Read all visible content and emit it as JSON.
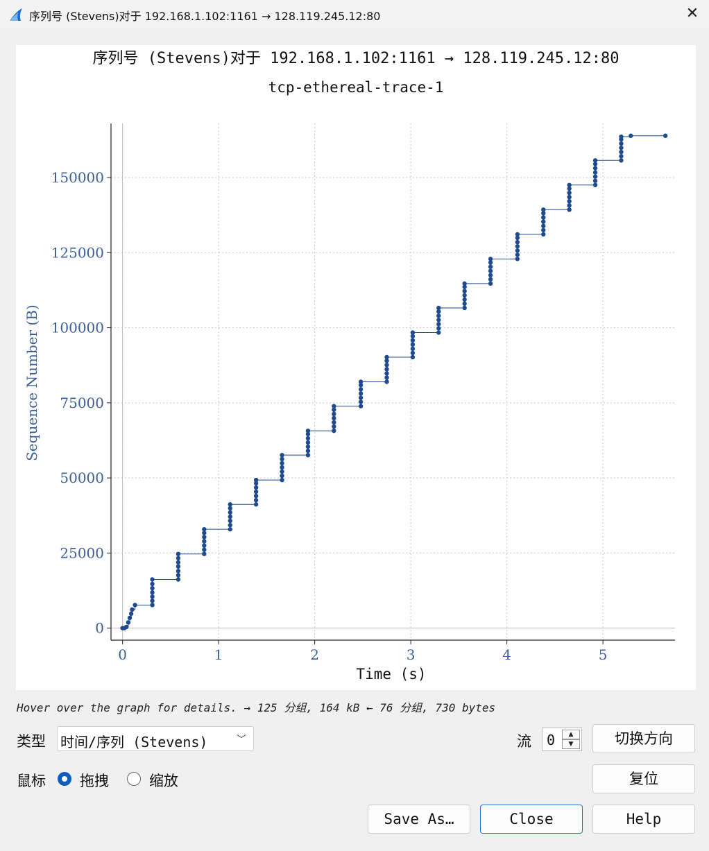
{
  "window": {
    "title": "序列号 (Stevens)对于 192.168.1.102:1161 → 128.119.245.12:80",
    "close_glyph": "✕"
  },
  "colors": {
    "series": "#1f4b8e",
    "axis_label": "#3a5f9a",
    "accent": "#0f5cc0"
  },
  "chart_data": {
    "type": "scatter",
    "style": "stevens-step",
    "title": "序列号 (Stevens)对于 192.168.1.102:1161 → 128.119.245.12:80",
    "subtitle": "tcp-ethereal-trace-1",
    "xlabel": "Time (s)",
    "ylabel": "Sequence Number (B)",
    "xlim": [
      -0.12,
      5.75
    ],
    "ylim": [
      -4000,
      168000
    ],
    "xticks": [
      0,
      1,
      2,
      3,
      4,
      5
    ],
    "yticks": [
      0,
      25000,
      50000,
      75000,
      100000,
      125000,
      150000
    ],
    "grid": true,
    "series": [
      {
        "points": [
          [
            0.0,
            0
          ],
          [
            0.02,
            0
          ],
          [
            0.04,
            400
          ],
          [
            0.06,
            1900
          ],
          [
            0.075,
            3400
          ],
          [
            0.09,
            4800
          ],
          [
            0.1,
            6200
          ],
          [
            0.13,
            7700
          ],
          [
            0.31,
            7700
          ],
          [
            0.31,
            9100
          ],
          [
            0.31,
            10500
          ],
          [
            0.31,
            11900
          ],
          [
            0.31,
            13300
          ],
          [
            0.31,
            14700
          ],
          [
            0.31,
            16200
          ],
          [
            0.58,
            16200
          ],
          [
            0.58,
            17600
          ],
          [
            0.58,
            19000
          ],
          [
            0.58,
            20500
          ],
          [
            0.58,
            21900
          ],
          [
            0.58,
            23300
          ],
          [
            0.58,
            24700
          ],
          [
            0.85,
            24700
          ],
          [
            0.85,
            26100
          ],
          [
            0.85,
            27500
          ],
          [
            0.85,
            28900
          ],
          [
            0.85,
            30300
          ],
          [
            0.85,
            31700
          ],
          [
            0.85,
            32900
          ],
          [
            1.12,
            32900
          ],
          [
            1.12,
            34300
          ],
          [
            1.12,
            35700
          ],
          [
            1.12,
            37100
          ],
          [
            1.12,
            38500
          ],
          [
            1.12,
            39900
          ],
          [
            1.12,
            41200
          ],
          [
            1.39,
            41200
          ],
          [
            1.39,
            42600
          ],
          [
            1.39,
            44000
          ],
          [
            1.39,
            45400
          ],
          [
            1.39,
            46800
          ],
          [
            1.39,
            48200
          ],
          [
            1.39,
            49300
          ],
          [
            1.66,
            49300
          ],
          [
            1.66,
            50700
          ],
          [
            1.66,
            52100
          ],
          [
            1.66,
            53500
          ],
          [
            1.66,
            54900
          ],
          [
            1.66,
            56300
          ],
          [
            1.66,
            57600
          ],
          [
            1.93,
            57600
          ],
          [
            1.93,
            59000
          ],
          [
            1.93,
            60400
          ],
          [
            1.93,
            61800
          ],
          [
            1.93,
            63200
          ],
          [
            1.93,
            64600
          ],
          [
            1.93,
            65700
          ],
          [
            2.2,
            65700
          ],
          [
            2.2,
            67100
          ],
          [
            2.2,
            68500
          ],
          [
            2.2,
            69900
          ],
          [
            2.2,
            71300
          ],
          [
            2.2,
            72700
          ],
          [
            2.2,
            73900
          ],
          [
            2.48,
            73900
          ],
          [
            2.48,
            75300
          ],
          [
            2.48,
            76700
          ],
          [
            2.48,
            78100
          ],
          [
            2.48,
            79500
          ],
          [
            2.48,
            80900
          ],
          [
            2.48,
            82000
          ],
          [
            2.75,
            82000
          ],
          [
            2.75,
            83400
          ],
          [
            2.75,
            84800
          ],
          [
            2.75,
            86200
          ],
          [
            2.75,
            87600
          ],
          [
            2.75,
            89000
          ],
          [
            2.75,
            90200
          ],
          [
            3.02,
            90200
          ],
          [
            3.02,
            91600
          ],
          [
            3.02,
            93000
          ],
          [
            3.02,
            94400
          ],
          [
            3.02,
            95800
          ],
          [
            3.02,
            97200
          ],
          [
            3.02,
            98400
          ],
          [
            3.29,
            98400
          ],
          [
            3.29,
            99800
          ],
          [
            3.29,
            101200
          ],
          [
            3.29,
            102600
          ],
          [
            3.29,
            104000
          ],
          [
            3.29,
            105400
          ],
          [
            3.29,
            106600
          ],
          [
            3.56,
            106600
          ],
          [
            3.56,
            108000
          ],
          [
            3.56,
            109400
          ],
          [
            3.56,
            110800
          ],
          [
            3.56,
            112200
          ],
          [
            3.56,
            113600
          ],
          [
            3.56,
            114700
          ],
          [
            3.83,
            114700
          ],
          [
            3.83,
            116100
          ],
          [
            3.83,
            117500
          ],
          [
            3.83,
            118900
          ],
          [
            3.83,
            120300
          ],
          [
            3.83,
            121700
          ],
          [
            3.83,
            122900
          ],
          [
            4.11,
            122900
          ],
          [
            4.11,
            124300
          ],
          [
            4.11,
            125700
          ],
          [
            4.11,
            127100
          ],
          [
            4.11,
            128500
          ],
          [
            4.11,
            129900
          ],
          [
            4.11,
            131100
          ],
          [
            4.38,
            131100
          ],
          [
            4.38,
            132500
          ],
          [
            4.38,
            133900
          ],
          [
            4.38,
            135300
          ],
          [
            4.38,
            136700
          ],
          [
            4.38,
            138100
          ],
          [
            4.38,
            139300
          ],
          [
            4.65,
            139300
          ],
          [
            4.65,
            140700
          ],
          [
            4.65,
            142100
          ],
          [
            4.65,
            143500
          ],
          [
            4.65,
            144900
          ],
          [
            4.65,
            146300
          ],
          [
            4.65,
            147500
          ],
          [
            4.92,
            147500
          ],
          [
            4.92,
            148900
          ],
          [
            4.92,
            150300
          ],
          [
            4.92,
            151700
          ],
          [
            4.92,
            153100
          ],
          [
            4.92,
            154500
          ],
          [
            4.92,
            155700
          ],
          [
            5.19,
            155700
          ],
          [
            5.19,
            157100
          ],
          [
            5.19,
            158500
          ],
          [
            5.19,
            159900
          ],
          [
            5.19,
            161300
          ],
          [
            5.19,
            162700
          ],
          [
            5.19,
            163600
          ],
          [
            5.29,
            163900
          ],
          [
            5.65,
            163900
          ]
        ]
      }
    ]
  },
  "status": {
    "hover_text": "Hover over the graph for details. → 125 分组, 164 kB ← 76 分组, 730 bytes"
  },
  "controls": {
    "type_label": "类型",
    "type_value": "时间/序列 (Stevens)",
    "type_chevron": "﹀",
    "stream_label": "流",
    "stream_value": "0",
    "spin_up": "▲",
    "spin_down": "▼",
    "mouse_label": "鼠标",
    "mouse_drag": "拖拽",
    "mouse_zoom": "缩放",
    "mouse_selected": "drag"
  },
  "buttons": {
    "switch_direction": "切换方向",
    "reset": "复位",
    "save_as": "Save As…",
    "close": "Close",
    "help": "Help"
  }
}
